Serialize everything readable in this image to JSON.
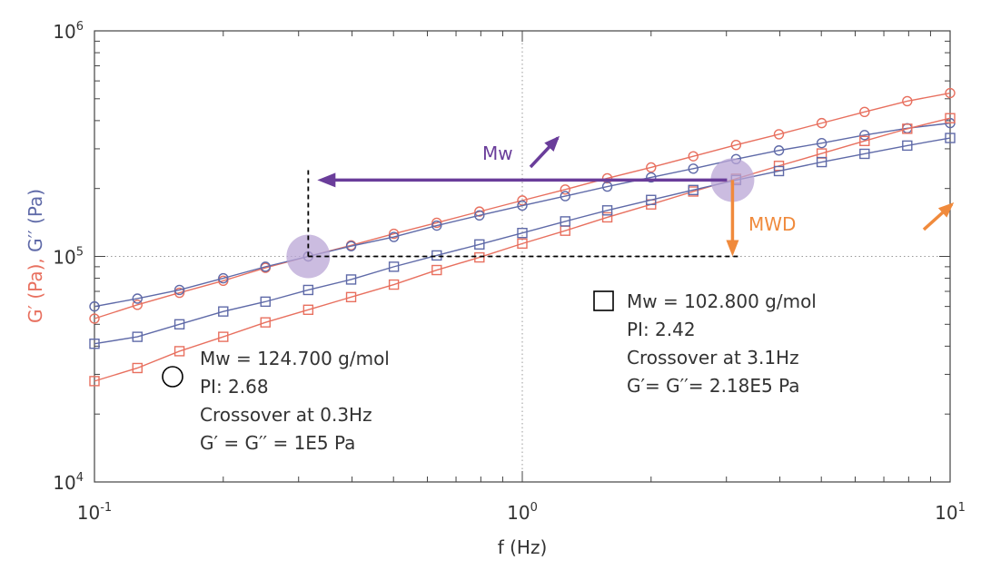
{
  "chart_data": {
    "type": "line",
    "xlabel": "f (Hz)",
    "ylabel_parts": [
      "G′ (Pa), ",
      "G′′ (Pa)"
    ],
    "x_scale": "log",
    "y_scale": "log",
    "xlim": [
      0.1,
      10
    ],
    "ylim": [
      10000,
      1000000
    ],
    "x_ticks": [
      {
        "base": "10",
        "exp": "-1",
        "value": 0.1
      },
      {
        "base": "10",
        "exp": "0",
        "value": 1
      },
      {
        "base": "10",
        "exp": "1",
        "value": 10
      }
    ],
    "y_ticks": [
      {
        "base": "10",
        "exp": "4",
        "value": 10000
      },
      {
        "base": "10",
        "exp": "5",
        "value": 100000
      },
      {
        "base": "10",
        "exp": "6",
        "value": 1000000
      }
    ],
    "x": [
      0.1,
      0.126,
      0.158,
      0.2,
      0.251,
      0.316,
      0.398,
      0.501,
      0.631,
      0.794,
      1.0,
      1.26,
      1.58,
      2.0,
      2.51,
      3.16,
      3.98,
      5.01,
      6.31,
      7.94,
      10.0
    ],
    "series": [
      {
        "marker": "circle",
        "modulus": "G′",
        "color": "#e8705f",
        "values": [
          53000,
          61000,
          69000,
          78000,
          89000,
          100000,
          112000,
          126000,
          141000,
          158000,
          177000,
          198000,
          222000,
          248000,
          278000,
          312000,
          348000,
          390000,
          437000,
          488000,
          530000
        ]
      },
      {
        "marker": "circle",
        "modulus": "G′′",
        "color": "#5f6aa8",
        "values": [
          60000,
          65000,
          71000,
          80000,
          90000,
          100000,
          111000,
          122000,
          137000,
          152000,
          168000,
          185000,
          204000,
          224000,
          245000,
          270000,
          295000,
          318000,
          345000,
          370000,
          390000
        ]
      },
      {
        "marker": "square",
        "modulus": "G′",
        "color": "#e8705f",
        "values": [
          28000,
          32000,
          38000,
          44000,
          51000,
          58000,
          66000,
          75000,
          87000,
          99000,
          114000,
          130000,
          149000,
          170000,
          194000,
          221000,
          252000,
          286000,
          325000,
          368000,
          410000
        ]
      },
      {
        "marker": "square",
        "modulus": "G′′",
        "color": "#5f6aa8",
        "values": [
          41000,
          44000,
          50000,
          57000,
          63000,
          71000,
          79000,
          90000,
          101000,
          113000,
          127000,
          143000,
          160000,
          178000,
          197000,
          218000,
          239000,
          262000,
          285000,
          310000,
          335000
        ]
      }
    ],
    "crossovers": [
      {
        "x": 0.316,
        "y": 100000
      },
      {
        "x": 3.1,
        "y": 218000
      }
    ],
    "annotations": {
      "circle_lines": [
        "Mw = 124.700 g/mol",
        "PI: 2.68",
        "Crossover at 0.3Hz",
        "G′ = G′′ = 1E5 Pa"
      ],
      "square_lines": [
        "Mw = 102.800 g/mol",
        "PI: 2.42",
        "Crossover at 3.1Hz",
        "G′= G′′= 2.18E5 Pa"
      ],
      "mw_label": "Mw",
      "mwd_label": "MWD"
    },
    "colors": {
      "gprime": "#e8705f",
      "gdoubleprime": "#5f6aa8",
      "purple": "#6a3d9a",
      "orange": "#f08a3c",
      "highlight": "#b9a6d6"
    },
    "grid": "dotted lines at major decades"
  }
}
